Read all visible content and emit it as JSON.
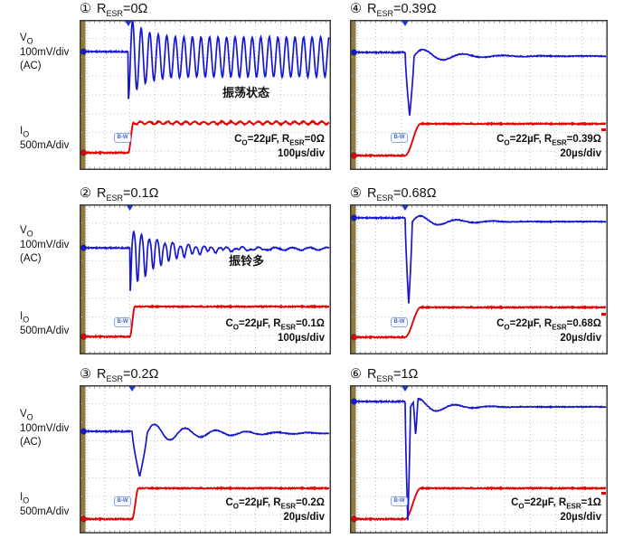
{
  "colors": {
    "vout_trace": "#1717cf",
    "iout_trace": "#e00505",
    "graticule": "#bcc4d0",
    "left_bar": "#8f7c3e",
    "border": "#3c3c3c",
    "tick": "#777777",
    "left_dotted_line": "#9ab0e8",
    "trigger_marker": "#2233dd"
  },
  "labels": {
    "r": "R",
    "esr_sub": "ESR",
    "cap": "C",
    "cap_sub": "O",
    "cap_eq": "=22µF, R",
    "badge": "B-W"
  },
  "chart_data": {
    "type": "line",
    "subtype": "oscilloscope-load-transient-grid",
    "rows": 3,
    "cols": 2,
    "x_axis": {
      "divisions": 10
    },
    "y_axis": {
      "divisions": 8
    },
    "traces": {
      "vout": {
        "sym": "V",
        "sub": "O",
        "scale": "100mV/div",
        "coupling": "(AC)",
        "color": "#1717cf"
      },
      "iout": {
        "sym": "I",
        "sub": "O",
        "scale": "500mA/div",
        "color": "#e00505"
      }
    },
    "capacitance": "22µF",
    "panels": [
      {
        "num": "①",
        "esr_text": "=0Ω",
        "timebase": "100µs/div",
        "note": "振荡状态",
        "waveform": {
          "t0_div": 1.94,
          "blue": {
            "type": "sustained",
            "base": 1.69,
            "center": 1.98,
            "amp": 1.06,
            "period": 0.34,
            "dip_to": 4.24
          },
          "red": {
            "base": 7.08,
            "top": 5.49,
            "rise": 0.2,
            "ripple": {
              "amp": 0.07,
              "period": 0.36
            }
          }
        }
      },
      {
        "num": "②",
        "esr_text": "=0.1Ω",
        "timebase": "100µs/div",
        "note": "振铃多",
        "waveform": {
          "t0_div": 2.0,
          "blue": {
            "type": "ring",
            "base": 2.32,
            "dip_to": 4.63,
            "period": 0.31,
            "tau": 1.26,
            "up_ratio": 0.45,
            "residual": 0.07
          },
          "red": {
            "base": 7.05,
            "top": 5.45,
            "rise": 0.2
          }
        }
      },
      {
        "num": "③",
        "esr_text": "=0.2Ω",
        "timebase": "20µs/div",
        "waveform": {
          "t0_div": 2.09,
          "blue": {
            "type": "spike",
            "base": 2.49,
            "dip_to": 4.93,
            "spike_w": 0.6,
            "settle": 2.59,
            "overshoot": 0.55,
            "period": 1.22,
            "tau": 2.16
          },
          "red": {
            "base": 7.22,
            "top": 5.56,
            "rise": 0.25
          }
        }
      },
      {
        "num": "④",
        "esr_text": "=0.39Ω",
        "timebase": "20µs/div",
        "right_marker": true,
        "waveform": {
          "t0_div": 2.14,
          "blue": {
            "type": "spike",
            "base": 1.73,
            "dip_to": 5.11,
            "spike_w": 0.35,
            "settle": 1.93,
            "overshoot": 0.45,
            "period": 1.54,
            "tau": 1.37
          },
          "red": {
            "base": 7.23,
            "top": 5.54,
            "rise": 0.6
          }
        }
      },
      {
        "num": "⑤",
        "esr_text": "=0.68Ω",
        "timebase": "20µs/div",
        "right_marker": true,
        "waveform": {
          "t0_div": 2.14,
          "blue": {
            "type": "spike",
            "base": 0.72,
            "dip_to": 5.3,
            "spike_w": 0.28,
            "settle": 0.92,
            "overshoot": 0.39,
            "period": 1.4,
            "tau": 1.23
          },
          "red": {
            "base": 7.08,
            "top": 5.49,
            "rise": 0.6
          }
        }
      },
      {
        "num": "⑥",
        "esr_text": "=1Ω",
        "timebase": "20µs/div",
        "right_marker": true,
        "waveform": {
          "t0_div": 2.14,
          "blue": {
            "type": "spike",
            "base": 0.88,
            "dip_to": 7.32,
            "spike_w": 0.21,
            "settle": 1.17,
            "overshoot": 0.59,
            "period": 1.4,
            "tau": 1.05,
            "notch": {
              "at": 0.11,
              "w": 0.18,
              "depth": 1.95
            }
          },
          "red": {
            "base": 7.22,
            "top": 5.56,
            "rise": 0.6
          }
        }
      }
    ]
  }
}
